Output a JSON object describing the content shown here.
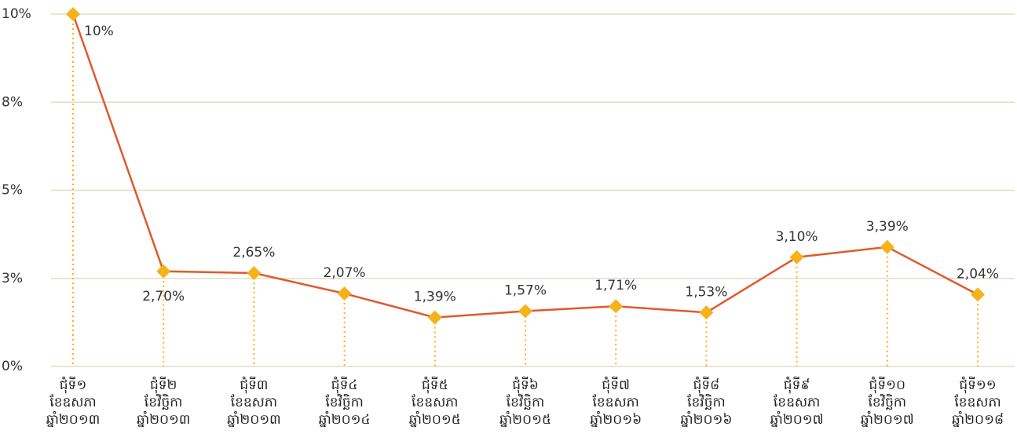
{
  "chart_data": {
    "type": "line",
    "categories": [
      "ជុំទី១\nខែឧសភា\nឆ្នាំ២០១៣",
      "ជុំទី២\nខែវិច្ឆិកា\nឆ្នាំ២០១៣",
      "ជុំទី៣\nខែឧសភា\nឆ្នាំ២០១៣",
      "ជុំទី៤\nខែវិច្ឆិកា\nឆ្នាំ២០១៤",
      "ជុំទី៥\nខែឧសភា\nឆ្នាំ២០១៥",
      "ជុំទី៦\nខែវិច្ឆិកា\nឆ្នាំ២០១៥",
      "ជុំទី៧\nខែឧសភា\nឆ្នាំ២០១៦",
      "ជុំទី៨\nខែវិច្ឆិកា\nឆ្នាំ២០១៦",
      "ជុំទី៩\nខែឧសភា\nឆ្នាំ២០១៧",
      "ជុំទី១០\nខែវិច្ឆិកា\nឆ្នាំ២០១៧",
      "ជុំទី១១\nខែឧសភា\nឆ្នាំ២០១៨"
    ],
    "values": [
      10,
      2.7,
      2.65,
      2.07,
      1.39,
      1.57,
      1.71,
      1.53,
      3.1,
      3.39,
      2.04
    ],
    "value_labels": [
      "10%",
      "2,70%",
      "2,65%",
      "2,07%",
      "1,39%",
      "1,57%",
      "1,71%",
      "1,53%",
      "3,10%",
      "3,39%",
      "2,04%"
    ],
    "line_color": "#e05a2b",
    "marker_color": "#f5b21b",
    "ylim": [
      0,
      10
    ],
    "yticks": [
      {
        "value": 0,
        "label": "0%"
      },
      {
        "value": 2.5,
        "label": "3%"
      },
      {
        "value": 5,
        "label": "5%"
      },
      {
        "value": 7.5,
        "label": "8%"
      },
      {
        "value": 10,
        "label": "10%"
      }
    ],
    "grid": true
  }
}
